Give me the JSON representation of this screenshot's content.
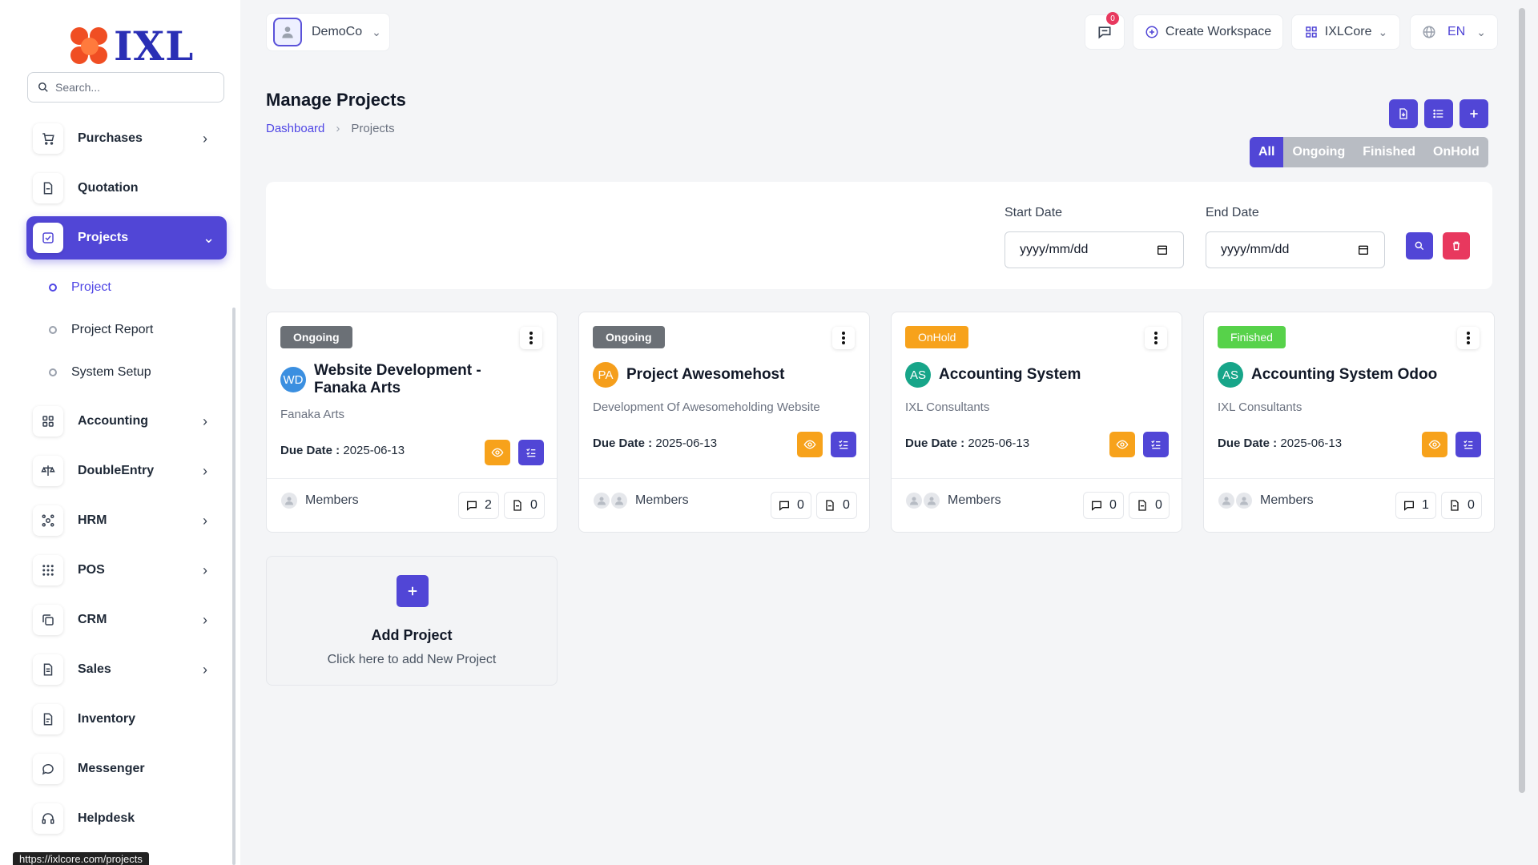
{
  "brand": {
    "name": "IXL"
  },
  "search": {
    "placeholder": "Search..."
  },
  "sidebar": {
    "items": [
      {
        "label": "Purchases",
        "icon": "cart-icon",
        "chevron": true
      },
      {
        "label": "Quotation",
        "icon": "document-icon",
        "chevron": false
      },
      {
        "label": "Projects",
        "icon": "checkbox-icon",
        "chevron": true,
        "active": true
      },
      {
        "label": "Project",
        "sub": true,
        "active": true
      },
      {
        "label": "Project Report",
        "sub": true
      },
      {
        "label": "System Setup",
        "sub": true
      },
      {
        "label": "Accounting",
        "icon": "grid-icon",
        "chevron": true
      },
      {
        "label": "DoubleEntry",
        "icon": "scale-icon",
        "chevron": true
      },
      {
        "label": "HRM",
        "icon": "network-icon",
        "chevron": true
      },
      {
        "label": "POS",
        "icon": "dots-grid-icon",
        "chevron": true
      },
      {
        "label": "CRM",
        "icon": "copy-icon",
        "chevron": true
      },
      {
        "label": "Sales",
        "icon": "invoice-icon",
        "chevron": true
      },
      {
        "label": "Inventory",
        "icon": "file-icon",
        "chevron": false
      },
      {
        "label": "Messenger",
        "icon": "chat-bubble-icon",
        "chevron": false
      },
      {
        "label": "Helpdesk",
        "icon": "headset-icon",
        "chevron": false
      }
    ]
  },
  "status_url": "https://ixlcore.com/projects",
  "topbar": {
    "workspace": "DemoCo",
    "notification_count": "0",
    "create_workspace": "Create Workspace",
    "app_switch": "IXLCore",
    "language": "EN"
  },
  "page": {
    "title": "Manage Projects",
    "breadcrumb": {
      "home": "Dashboard",
      "current": "Projects"
    },
    "filters": [
      "All",
      "Ongoing",
      "Finished",
      "OnHold"
    ],
    "active_filter": "All"
  },
  "filter_form": {
    "start_label": "Start Date",
    "end_label": "End Date",
    "start_placeholder": "yyyy/mm/dd",
    "end_placeholder": "yyyy/mm/dd"
  },
  "projects": [
    {
      "status": "Ongoing",
      "status_color": "#6b7076",
      "initials": "WD",
      "avatar_color": "#3b8fe0",
      "title": "Website Development - Fanaka Arts",
      "client": "Fanaka Arts",
      "due_label": "Due Date :",
      "due": "2025-06-13",
      "members_label": "Members",
      "comments": "2",
      "files": "0"
    },
    {
      "status": "Ongoing",
      "status_color": "#6b7076",
      "initials": "PA",
      "avatar_color": "#f59e1b",
      "title": "Project Awesomehost",
      "client": "Development Of Awesomeholding Website",
      "due_label": "Due Date :",
      "due": "2025-06-13",
      "members_label": "Members",
      "comments": "0",
      "files": "0"
    },
    {
      "status": "OnHold",
      "status_color": "#f7a21b",
      "initials": "AS",
      "avatar_color": "#17a589",
      "title": "Accounting System",
      "client": "IXL Consultants",
      "due_label": "Due Date :",
      "due": "2025-06-13",
      "members_label": "Members",
      "comments": "0",
      "files": "0"
    },
    {
      "status": "Finished",
      "status_color": "#57d24a",
      "initials": "AS",
      "avatar_color": "#17a589",
      "title": "Accounting System Odoo",
      "client": "IXL Consultants",
      "due_label": "Due Date :",
      "due": "2025-06-13",
      "members_label": "Members",
      "comments": "1",
      "files": "0"
    }
  ],
  "add_project": {
    "title": "Add Project",
    "subtitle": "Click here to add New Project"
  },
  "colors": {
    "accent": "#5146d6",
    "warning": "#f7a21b",
    "danger": "#e8385e"
  }
}
